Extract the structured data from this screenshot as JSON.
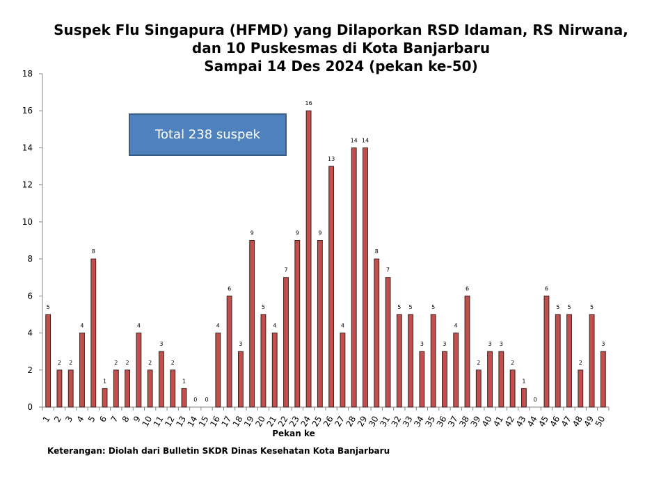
{
  "title": {
    "line1": "Suspek Flu Singapura (HFMD) yang Dilaporkan RSD Idaman, RS Nirwana,",
    "line2": "dan 10 Puskesmas di Kota Banjarbaru",
    "line3": "Sampai 14 Des 2024 (pekan ke-50)"
  },
  "total_box": {
    "text": "Total 238 suspek"
  },
  "footnote": "Keterangan: Diolah dari Bulletin SKDR Dinas Kesehatan Kota Banjarbaru",
  "colors": {
    "bar_fill": "#c0504d",
    "bar_stroke": "#3a1f1e",
    "box_fill": "#4f81bd"
  },
  "chart_data": {
    "type": "bar",
    "xlabel": "Pekan ke",
    "ylabel": "",
    "ylim": [
      0,
      18
    ],
    "yticks": [
      0,
      2,
      4,
      6,
      8,
      10,
      12,
      14,
      16,
      18
    ],
    "grid": false,
    "categories": [
      "1",
      "2",
      "3",
      "4",
      "5",
      "6",
      "7",
      "8",
      "9",
      "10",
      "11",
      "12",
      "13",
      "14",
      "15",
      "16",
      "17",
      "18",
      "19",
      "20",
      "21",
      "22",
      "23",
      "24",
      "25",
      "26",
      "27",
      "28",
      "29",
      "30",
      "31",
      "32",
      "33",
      "34",
      "35",
      "36",
      "37",
      "38",
      "39",
      "40",
      "41",
      "42",
      "43",
      "44",
      "45",
      "46",
      "47",
      "48",
      "49",
      "50"
    ],
    "values": [
      5,
      2,
      2,
      4,
      8,
      1,
      2,
      2,
      4,
      2,
      3,
      2,
      1,
      0,
      0,
      4,
      6,
      3,
      9,
      5,
      4,
      7,
      9,
      16,
      9,
      13,
      4,
      14,
      14,
      8,
      7,
      5,
      5,
      3,
      5,
      3,
      4,
      6,
      2,
      3,
      3,
      2,
      1,
      0,
      6,
      5,
      5,
      2,
      5,
      3
    ]
  }
}
